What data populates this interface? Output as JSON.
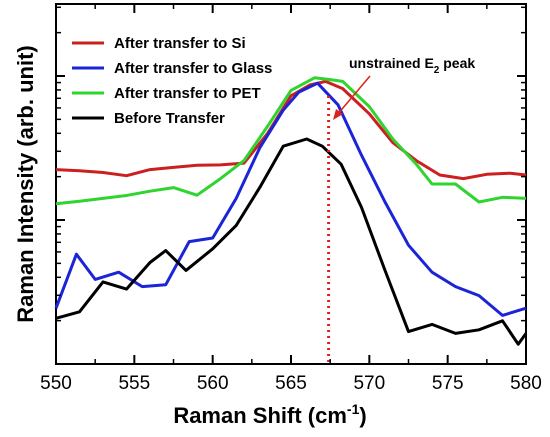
{
  "chart_data": {
    "type": "line",
    "xlabel": "Raman Shift (cm",
    "xlabel_sup": "-1",
    "xlabel_end": ")",
    "ylabel": "Raman Intensity (arb. unit)",
    "xlim": [
      550,
      580
    ],
    "x_ticks": [
      550,
      555,
      560,
      565,
      570,
      575,
      580
    ],
    "y_scale": "log",
    "grid": false,
    "legend_position": "top-left",
    "annotation": {
      "text": "unstrained E",
      "sub": "2",
      "text_end": " peak",
      "x": 567.4
    },
    "series": [
      {
        "name": "After transfer to Si",
        "color": "#cc1f1f",
        "x": [
          550,
          551.5,
          553,
          554.5,
          556,
          557.5,
          559,
          560.5,
          562,
          563.5,
          565,
          566.2,
          567.2,
          568.3,
          570,
          571.5,
          573,
          574.5,
          576,
          577.5,
          579,
          580
        ],
        "values": [
          0.54,
          0.537,
          0.532,
          0.523,
          0.54,
          0.546,
          0.552,
          0.553,
          0.558,
          0.64,
          0.745,
          0.775,
          0.785,
          0.765,
          0.695,
          0.615,
          0.565,
          0.525,
          0.515,
          0.527,
          0.53,
          0.525
        ]
      },
      {
        "name": "After transfer to Glass",
        "color": "#1b24d6",
        "x": [
          550,
          551.3,
          552.5,
          554,
          555.5,
          557,
          558.5,
          560,
          561.5,
          563,
          564.5,
          565.5,
          566.7,
          568,
          569.5,
          571,
          572.5,
          574,
          575.5,
          577,
          578.5,
          580
        ],
        "values": [
          0.155,
          0.305,
          0.235,
          0.255,
          0.215,
          0.22,
          0.34,
          0.35,
          0.46,
          0.6,
          0.705,
          0.755,
          0.78,
          0.72,
          0.58,
          0.45,
          0.33,
          0.255,
          0.215,
          0.19,
          0.135,
          0.155
        ]
      },
      {
        "name": "After transfer to PET",
        "color": "#2fd42f",
        "x": [
          550,
          551.5,
          553,
          554.5,
          556,
          557.5,
          559,
          560.5,
          562,
          563.5,
          565,
          566.5,
          567.5,
          568.3,
          570,
          571.5,
          573,
          574,
          575.5,
          577,
          578.5,
          580
        ],
        "values": [
          0.445,
          0.452,
          0.46,
          0.468,
          0.48,
          0.49,
          0.469,
          0.515,
          0.565,
          0.66,
          0.76,
          0.795,
          0.79,
          0.785,
          0.715,
          0.625,
          0.555,
          0.5,
          0.5,
          0.45,
          0.463,
          0.46
        ]
      },
      {
        "name": "Before Transfer",
        "color": "#000000",
        "x": [
          550,
          551.5,
          553,
          554.5,
          556,
          557,
          558.3,
          560,
          561.5,
          563,
          564.5,
          566,
          567,
          568.2,
          569.5,
          571,
          572.5,
          574,
          575.5,
          577,
          578.5,
          579.5,
          580
        ],
        "values": [
          0.127,
          0.145,
          0.228,
          0.208,
          0.282,
          0.315,
          0.26,
          0.32,
          0.385,
          0.49,
          0.605,
          0.625,
          0.605,
          0.555,
          0.435,
          0.26,
          0.09,
          0.11,
          0.085,
          0.095,
          0.12,
          0.055,
          0.085
        ]
      }
    ]
  }
}
